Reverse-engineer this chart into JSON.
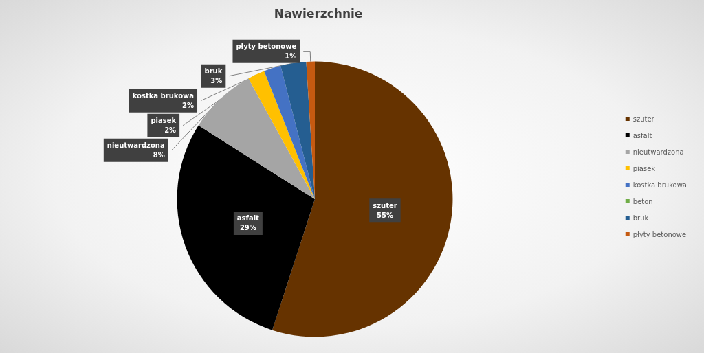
{
  "chart_data": {
    "type": "pie",
    "title": "Nawierzchnie",
    "categories": [
      "szuter",
      "asfalt",
      "nieutwardzona",
      "piasek",
      "kostka brukowa",
      "beton",
      "bruk",
      "płyty betonowe"
    ],
    "values": [
      55,
      29,
      8,
      2,
      2,
      0,
      3,
      1
    ],
    "colors": [
      "#663300",
      "#000000",
      "#a5a5a5",
      "#ffc000",
      "#4472c4",
      "#70ad47",
      "#255e91",
      "#c55a11"
    ],
    "value_labels": [
      "55%",
      "29%",
      "8%",
      "2%",
      "2%",
      null,
      "3%",
      "1%"
    ],
    "legend": "right"
  }
}
